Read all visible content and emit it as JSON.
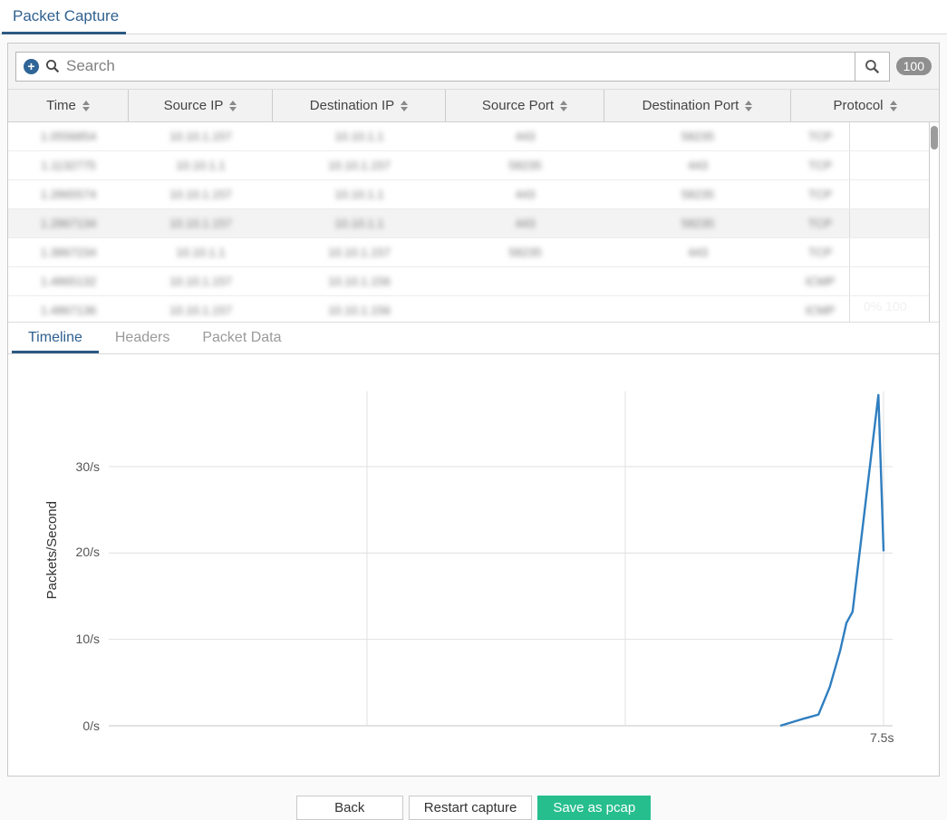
{
  "topbar": {
    "tab": "Packet Capture"
  },
  "search": {
    "placeholder": "Search",
    "result_count": "100"
  },
  "table": {
    "redacted_blurred": true,
    "columns": [
      {
        "label": "Time",
        "sortable": true
      },
      {
        "label": "Source IP",
        "sortable": true
      },
      {
        "label": "Destination IP",
        "sortable": true
      },
      {
        "label": "Source Port",
        "sortable": true
      },
      {
        "label": "Destination Port",
        "sortable": true
      },
      {
        "label": "Protocol",
        "sortable": true
      }
    ],
    "rows": [
      {
        "selected": false,
        "cells": [
          "1.0556854",
          "10.10.1.157",
          "10.10.1.1",
          "443",
          "58235",
          "TCP"
        ]
      },
      {
        "selected": false,
        "cells": [
          "1.1132775",
          "10.10.1.1",
          "10.10.1.157",
          "58235",
          "443",
          "TCP"
        ]
      },
      {
        "selected": false,
        "cells": [
          "1.2865574",
          "10.10.1.157",
          "10.10.1.1",
          "443",
          "58235",
          "TCP"
        ]
      },
      {
        "selected": true,
        "cells": [
          "1.2867134",
          "10.10.1.157",
          "10.10.1.1",
          "443",
          "58235",
          "TCP"
        ]
      },
      {
        "selected": false,
        "cells": [
          "1.3867234",
          "10.10.1.1",
          "10.10.1.157",
          "58235",
          "443",
          "TCP"
        ]
      },
      {
        "selected": false,
        "cells": [
          "1.4865132",
          "10.10.1.157",
          "10.10.1.156",
          "",
          "",
          "ICMP"
        ]
      },
      {
        "selected": false,
        "cells": [
          "1.4867136",
          "10.10.1.157",
          "10.10.1.156",
          "",
          "",
          "ICMP"
        ]
      }
    ],
    "faint_overlay_text": "0% 100"
  },
  "detail_tabs": [
    {
      "label": "Timeline",
      "active": true
    },
    {
      "label": "Headers",
      "active": false
    },
    {
      "label": "Packet Data",
      "active": false
    }
  ],
  "chart_data": {
    "type": "line",
    "title": "",
    "xlabel": "",
    "ylabel": "Packets/Second",
    "xlim": [
      0,
      7.59
    ],
    "ylim": [
      0,
      39
    ],
    "grid": true,
    "legend_position": "none",
    "y_ticks": [
      {
        "v": 0,
        "label": "0/s"
      },
      {
        "v": 10,
        "label": "10/s"
      },
      {
        "v": 20,
        "label": "20/s"
      },
      {
        "v": 30,
        "label": "30/s"
      }
    ],
    "x_tick": {
      "s": 7.5,
      "label": "7.5s"
    },
    "x_gridlines_s": [
      2.5,
      5.0,
      7.5
    ],
    "series": [
      {
        "name": "packets per second",
        "color": "#2f7ec0",
        "points": [
          [
            6.5,
            0
          ],
          [
            6.72,
            0.8
          ],
          [
            6.87,
            1.3
          ],
          [
            6.98,
            4.5
          ],
          [
            7.08,
            8.7
          ],
          [
            7.14,
            11.9
          ],
          [
            7.2,
            13.2
          ],
          [
            7.45,
            38.3
          ],
          [
            7.5,
            20.2
          ]
        ]
      }
    ]
  },
  "footer_buttons": [
    {
      "label": "Back",
      "primary": false
    },
    {
      "label": "Restart capture",
      "primary": false
    },
    {
      "label": "Save as pcap",
      "primary": true
    }
  ],
  "colors": {
    "accent_blue": "#30618f",
    "tab_underline": "#2c5a82",
    "chart_line": "#2f7ec0",
    "primary_button": "#27be8d",
    "badge_bg": "#8f8f8f",
    "selected_row": "#f3f3f3"
  }
}
